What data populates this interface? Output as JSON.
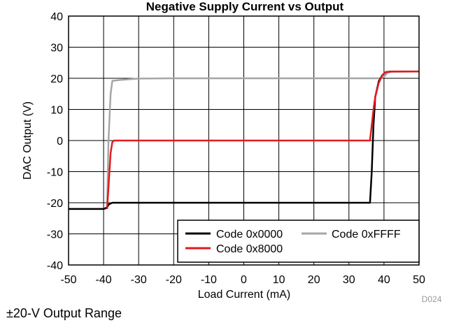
{
  "title": "Negative Supply Current vs Output",
  "caption": "±20-V Output Range",
  "chart_id_label": "D024",
  "chart_data": {
    "type": "line",
    "xlabel": "Load Current (mA)",
    "ylabel": "DAC Output (V)",
    "xlim": [
      -50,
      50
    ],
    "ylim": [
      -40,
      40
    ],
    "xticks": [
      -50,
      -40,
      -30,
      -20,
      -10,
      0,
      10,
      20,
      30,
      40,
      50
    ],
    "yticks": [
      -40,
      -30,
      -20,
      -10,
      0,
      10,
      20,
      30,
      40
    ],
    "grid": true,
    "legend_position": "bottom-right",
    "series": [
      {
        "name": "Code 0x0000",
        "color": "#000000",
        "points": [
          [
            -50,
            -22
          ],
          [
            -40,
            -22
          ],
          [
            -39,
            -21.5
          ],
          [
            -38.5,
            -20.5
          ],
          [
            -37.5,
            -20
          ],
          [
            -30,
            -20
          ],
          [
            0,
            -20
          ],
          [
            35,
            -20
          ],
          [
            36,
            -20
          ],
          [
            36.5,
            -10
          ],
          [
            37,
            5
          ],
          [
            37.5,
            14
          ],
          [
            38.5,
            19
          ],
          [
            39.5,
            21
          ],
          [
            40.5,
            22
          ],
          [
            42,
            22.2
          ],
          [
            50,
            22.2
          ]
        ]
      },
      {
        "name": "Code 0xFFFF",
        "color": "#a6a6a6",
        "points": [
          [
            -50,
            -22
          ],
          [
            -39.5,
            -22
          ],
          [
            -39,
            -21.6
          ],
          [
            -38.6,
            0
          ],
          [
            -38,
            15
          ],
          [
            -37.5,
            19.2
          ],
          [
            -35,
            19.5
          ],
          [
            -30,
            19.9
          ],
          [
            -20,
            20
          ],
          [
            0,
            20
          ],
          [
            39,
            20
          ],
          [
            40,
            20.5
          ],
          [
            41,
            21.8
          ],
          [
            42,
            22.1
          ],
          [
            50,
            22.2
          ]
        ]
      },
      {
        "name": "Code 0x8000",
        "color": "#e31a1c",
        "points": [
          [
            -39,
            -22
          ],
          [
            -38.6,
            -15
          ],
          [
            -38,
            -4
          ],
          [
            -37.5,
            -0.5
          ],
          [
            -37,
            0
          ],
          [
            -30,
            0
          ],
          [
            0,
            0
          ],
          [
            35,
            0
          ],
          [
            36,
            0
          ],
          [
            36.5,
            5
          ],
          [
            37,
            10
          ],
          [
            37.5,
            14
          ],
          [
            38.5,
            18.5
          ],
          [
            39.5,
            21
          ],
          [
            40.5,
            22
          ],
          [
            42,
            22.2
          ],
          [
            50,
            22.2
          ]
        ]
      }
    ]
  }
}
